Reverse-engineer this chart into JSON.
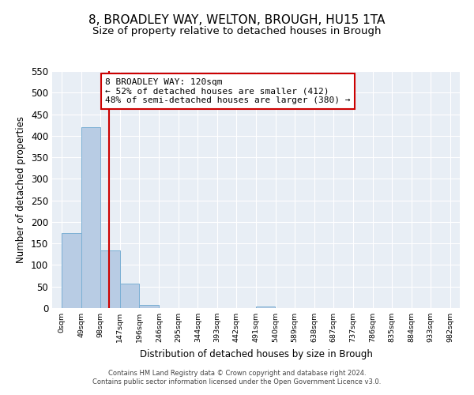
{
  "title": "8, BROADLEY WAY, WELTON, BROUGH, HU15 1TA",
  "subtitle": "Size of property relative to detached houses in Brough",
  "xlabel": "Distribution of detached houses by size in Brough",
  "ylabel": "Number of detached properties",
  "bar_values": [
    175,
    420,
    133,
    57,
    7,
    0,
    0,
    0,
    0,
    0,
    3,
    0,
    0,
    0,
    0,
    0,
    0,
    0,
    0,
    0
  ],
  "bin_edges": [
    0,
    49,
    98,
    147,
    196,
    246,
    295,
    344,
    393,
    442,
    491,
    540,
    589,
    638,
    687,
    737,
    786,
    835,
    884,
    933,
    982
  ],
  "tick_labels": [
    "0sqm",
    "49sqm",
    "98sqm",
    "147sqm",
    "196sqm",
    "246sqm",
    "295sqm",
    "344sqm",
    "393sqm",
    "442sqm",
    "491sqm",
    "540sqm",
    "589sqm",
    "638sqm",
    "687sqm",
    "737sqm",
    "786sqm",
    "835sqm",
    "884sqm",
    "933sqm",
    "982sqm"
  ],
  "bar_color": "#b8cce4",
  "bar_edgecolor": "#7bafd4",
  "vline_x": 120,
  "vline_color": "#cc0000",
  "ylim": [
    0,
    550
  ],
  "annotation_text": "8 BROADLEY WAY: 120sqm\n← 52% of detached houses are smaller (412)\n48% of semi-detached houses are larger (380) →",
  "annotation_box_color": "#cc0000",
  "footer_line1": "Contains HM Land Registry data © Crown copyright and database right 2024.",
  "footer_line2": "Contains public sector information licensed under the Open Government Licence v3.0.",
  "axes_bg_color": "#e8eef5",
  "fig_bg_color": "#ffffff",
  "title_fontsize": 11,
  "subtitle_fontsize": 9.5,
  "yticks": [
    0,
    50,
    100,
    150,
    200,
    250,
    300,
    350,
    400,
    450,
    500,
    550
  ]
}
